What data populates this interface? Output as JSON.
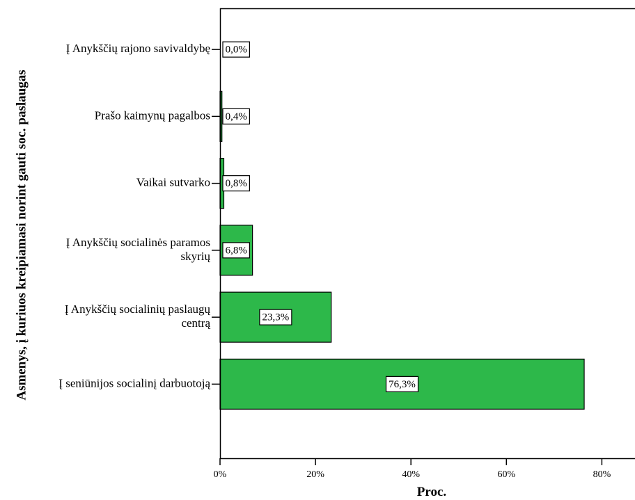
{
  "chart_data": {
    "type": "bar",
    "orientation": "horizontal",
    "xlabel": "Proc.",
    "ylabel": "Asmenys, į kuriuos kreipiamasi norint gauti soc. paslaugas",
    "xlim": [
      0,
      87
    ],
    "xticks": [
      0,
      20,
      40,
      60,
      80
    ],
    "xtick_labels": [
      "0%",
      "20%",
      "40%",
      "60%",
      "80%"
    ],
    "grid": false,
    "bar_color": "#2db84a",
    "categories": [
      [
        "Į Anykščių rajono savivaldybę"
      ],
      [
        "Prašo kaimynų pagalbos"
      ],
      [
        "Vaikai sutvarko"
      ],
      [
        "Į Anykščių socialinės paramos",
        "skyrių"
      ],
      [
        "Į Anykščių socialinių paslaugų",
        "centrą"
      ],
      [
        "Į seniūnijos socialinį darbuotoją"
      ]
    ],
    "values": [
      0.0,
      0.4,
      0.8,
      6.8,
      23.3,
      76.3
    ],
    "value_labels": [
      "0,0%",
      "0,4%",
      "0,8%",
      "6,8%",
      "23,3%",
      "76,3%"
    ]
  }
}
